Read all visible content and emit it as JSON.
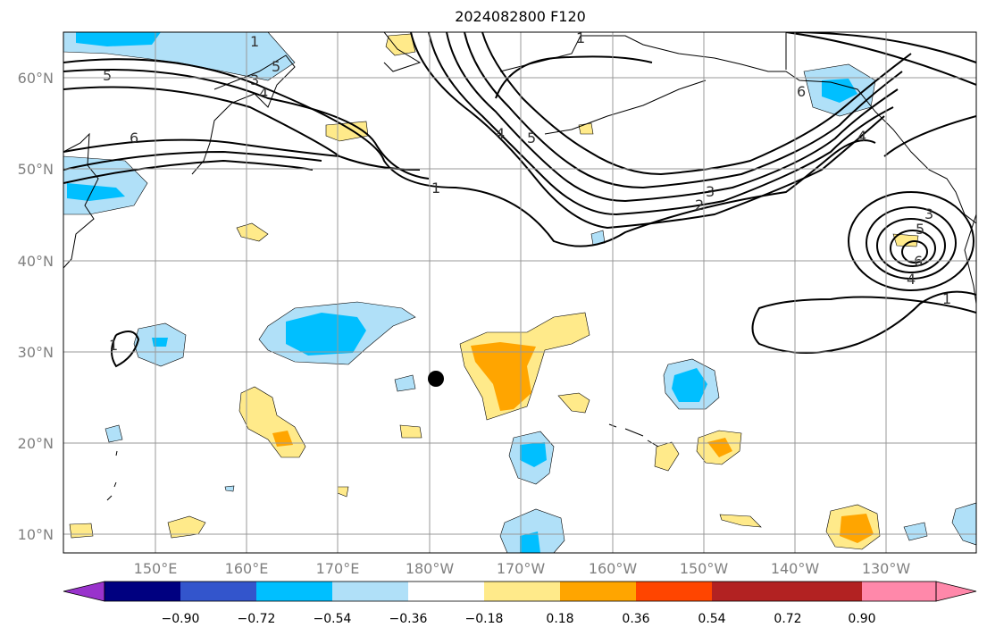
{
  "title": "2024082800 F120",
  "lat_labels": [
    "60°N",
    "50°N",
    "40°N",
    "30°N",
    "20°N",
    "10°N"
  ],
  "lon_labels": [
    "150°E",
    "160°E",
    "170°E",
    "180°W",
    "170°W",
    "160°W",
    "150°W",
    "140°W",
    "130°W"
  ],
  "colorbar": {
    "ticks": [
      "−0.90",
      "−0.72",
      "−0.54",
      "−0.36",
      "−0.18",
      "0.18",
      "0.36",
      "0.54",
      "0.72",
      "0.90"
    ],
    "colors": [
      "#9933cc",
      "#000080",
      "#3355cc",
      "#00bfff",
      "#b0e0f8",
      "#ffffff",
      "#ffea8a",
      "#ffa500",
      "#ff4500",
      "#b22222",
      "#ff88aa"
    ]
  },
  "contour_labels": [
    "1",
    "5",
    "4",
    "3",
    "6",
    "1",
    "4",
    "5",
    "3",
    "2",
    "1",
    "6",
    "4",
    "3",
    "5",
    "6",
    "4",
    "1",
    "1",
    "5"
  ],
  "marker": "storm-position"
}
